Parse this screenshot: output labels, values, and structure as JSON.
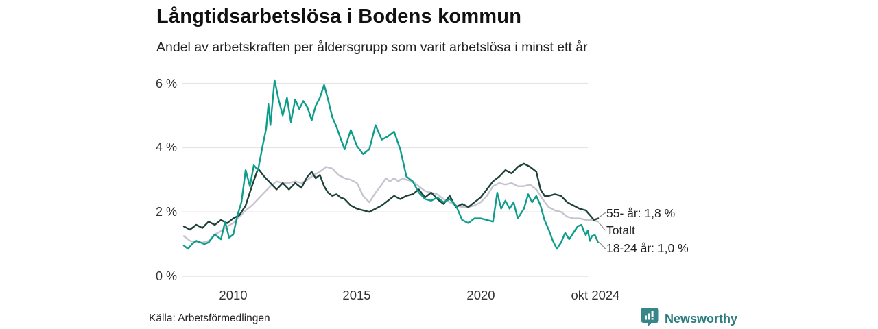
{
  "title": "Långtidsarbetslösa i Bodens kommun",
  "subtitle": "Andel av arbetskraften per åldersgrupp som varit arbetslösa i minst ett år",
  "source": "Källa: Arbetsförmedlingen",
  "branding": {
    "name": "Newsworthy",
    "icon": "newsworthy-bar-chart-pin-icon",
    "text_color": "#2b7b7f",
    "icon_color": "#37868a"
  },
  "chart_data": {
    "type": "line",
    "title": "Långtidsarbetslösa i Bodens kommun",
    "subtitle": "Andel av arbetskraften per åldersgrupp som varit arbetslösa i minst ett år",
    "grid": true,
    "gridline_color": "#e4e4e6",
    "legend_position": "right-end-labels",
    "x_axis": {
      "tick_labels": [
        "2010",
        "2015",
        "2020",
        "okt 2024"
      ],
      "tick_positions": [
        2010,
        2015,
        2020,
        2024.75
      ],
      "range": [
        2008,
        2024.75
      ]
    },
    "y_axis": {
      "unit": "%",
      "tick_labels": [
        "0 %",
        "2 %",
        "4 %",
        "6 %"
      ],
      "tick_values": [
        0,
        2,
        4,
        6
      ],
      "range": [
        0,
        6.3
      ]
    },
    "series": [
      {
        "id": "totalt",
        "name": "Totalt",
        "end_label": "Totalt",
        "color": "#c7c4cf",
        "points": [
          [
            2008,
            1.25
          ],
          [
            2008.25,
            1.1
          ],
          [
            2008.5,
            1.05
          ],
          [
            2008.75,
            1.05
          ],
          [
            2009,
            1.1
          ],
          [
            2009.25,
            1.3
          ],
          [
            2009.5,
            1.4
          ],
          [
            2009.75,
            1.55
          ],
          [
            2010,
            1.65
          ],
          [
            2010.25,
            1.85
          ],
          [
            2010.5,
            2.05
          ],
          [
            2010.75,
            2.2
          ],
          [
            2011,
            2.4
          ],
          [
            2011.25,
            2.6
          ],
          [
            2011.5,
            2.8
          ],
          [
            2011.75,
            2.95
          ],
          [
            2012,
            2.9
          ],
          [
            2012.25,
            2.9
          ],
          [
            2012.5,
            2.95
          ],
          [
            2012.75,
            2.9
          ],
          [
            2013,
            3.0
          ],
          [
            2013.25,
            3.15
          ],
          [
            2013.5,
            3.25
          ],
          [
            2013.75,
            3.4
          ],
          [
            2014,
            3.35
          ],
          [
            2014.25,
            3.15
          ],
          [
            2014.5,
            3.05
          ],
          [
            2014.75,
            3.0
          ],
          [
            2015,
            2.9
          ],
          [
            2015.25,
            2.5
          ],
          [
            2015.5,
            2.3
          ],
          [
            2015.75,
            2.6
          ],
          [
            2016,
            2.85
          ],
          [
            2016.17,
            3.05
          ],
          [
            2016.33,
            2.95
          ],
          [
            2016.5,
            3.05
          ],
          [
            2016.67,
            2.95
          ],
          [
            2016.83,
            3.05
          ],
          [
            2017,
            3.0
          ],
          [
            2017.25,
            2.95
          ],
          [
            2017.5,
            2.8
          ],
          [
            2017.75,
            2.65
          ],
          [
            2018,
            2.6
          ],
          [
            2018.25,
            2.55
          ],
          [
            2018.5,
            2.4
          ],
          [
            2018.75,
            2.3
          ],
          [
            2019,
            2.2
          ],
          [
            2019.25,
            2.15
          ],
          [
            2019.5,
            2.15
          ],
          [
            2019.75,
            2.2
          ],
          [
            2020,
            2.3
          ],
          [
            2020.25,
            2.5
          ],
          [
            2020.5,
            2.8
          ],
          [
            2020.75,
            2.9
          ],
          [
            2021,
            2.85
          ],
          [
            2021.25,
            2.9
          ],
          [
            2021.5,
            2.8
          ],
          [
            2021.75,
            2.8
          ],
          [
            2022,
            2.85
          ],
          [
            2022.25,
            2.7
          ],
          [
            2022.5,
            2.4
          ],
          [
            2022.75,
            2.15
          ],
          [
            2023,
            2.05
          ],
          [
            2023.25,
            2.0
          ],
          [
            2023.5,
            1.85
          ],
          [
            2023.75,
            1.8
          ],
          [
            2024,
            1.8
          ],
          [
            2024.25,
            1.75
          ],
          [
            2024.5,
            1.75
          ],
          [
            2024.75,
            1.7
          ]
        ]
      },
      {
        "id": "55-ar",
        "name": "55- år",
        "end_label": "55- år: 1,8 %",
        "end_value": "1,8 %",
        "color": "#1e423a",
        "points": [
          [
            2008,
            1.55
          ],
          [
            2008.25,
            1.45
          ],
          [
            2008.5,
            1.6
          ],
          [
            2008.75,
            1.5
          ],
          [
            2009,
            1.7
          ],
          [
            2009.25,
            1.6
          ],
          [
            2009.5,
            1.75
          ],
          [
            2009.75,
            1.65
          ],
          [
            2010,
            1.8
          ],
          [
            2010.25,
            1.9
          ],
          [
            2010.5,
            2.2
          ],
          [
            2010.75,
            2.8
          ],
          [
            2011,
            3.35
          ],
          [
            2011.25,
            3.1
          ],
          [
            2011.5,
            2.9
          ],
          [
            2011.75,
            2.7
          ],
          [
            2012,
            2.9
          ],
          [
            2012.25,
            2.7
          ],
          [
            2012.5,
            2.9
          ],
          [
            2012.75,
            2.75
          ],
          [
            2013,
            3.1
          ],
          [
            2013.17,
            3.25
          ],
          [
            2013.33,
            3.05
          ],
          [
            2013.5,
            3.15
          ],
          [
            2013.67,
            2.8
          ],
          [
            2013.83,
            2.6
          ],
          [
            2014,
            2.5
          ],
          [
            2014.17,
            2.55
          ],
          [
            2014.33,
            2.45
          ],
          [
            2014.5,
            2.4
          ],
          [
            2014.75,
            2.2
          ],
          [
            2015,
            2.1
          ],
          [
            2015.25,
            2.05
          ],
          [
            2015.5,
            2.0
          ],
          [
            2015.75,
            2.1
          ],
          [
            2016,
            2.2
          ],
          [
            2016.25,
            2.35
          ],
          [
            2016.5,
            2.5
          ],
          [
            2016.75,
            2.4
          ],
          [
            2017,
            2.5
          ],
          [
            2017.25,
            2.55
          ],
          [
            2017.5,
            2.7
          ],
          [
            2017.75,
            2.45
          ],
          [
            2018,
            2.6
          ],
          [
            2018.25,
            2.4
          ],
          [
            2018.5,
            2.25
          ],
          [
            2018.75,
            2.5
          ],
          [
            2019,
            2.15
          ],
          [
            2019.25,
            2.25
          ],
          [
            2019.5,
            2.15
          ],
          [
            2019.75,
            2.3
          ],
          [
            2020,
            2.45
          ],
          [
            2020.25,
            2.7
          ],
          [
            2020.5,
            2.95
          ],
          [
            2020.75,
            3.1
          ],
          [
            2021,
            3.3
          ],
          [
            2021.25,
            3.2
          ],
          [
            2021.5,
            3.4
          ],
          [
            2021.75,
            3.5
          ],
          [
            2022,
            3.4
          ],
          [
            2022.25,
            3.25
          ],
          [
            2022.42,
            2.7
          ],
          [
            2022.58,
            2.5
          ],
          [
            2022.75,
            2.5
          ],
          [
            2023,
            2.55
          ],
          [
            2023.25,
            2.5
          ],
          [
            2023.5,
            2.3
          ],
          [
            2023.75,
            2.2
          ],
          [
            2024,
            2.1
          ],
          [
            2024.25,
            2.05
          ],
          [
            2024.42,
            1.9
          ],
          [
            2024.58,
            1.75
          ],
          [
            2024.75,
            1.8
          ]
        ]
      },
      {
        "id": "18-24-ar",
        "name": "18-24 år",
        "end_label": "18-24 år: 1,0 %",
        "end_value": "1,0 %",
        "color": "#0e9c8b",
        "points": [
          [
            2008,
            0.95
          ],
          [
            2008.17,
            0.85
          ],
          [
            2008.33,
            1.0
          ],
          [
            2008.5,
            1.1
          ],
          [
            2008.67,
            1.05
          ],
          [
            2008.83,
            1.0
          ],
          [
            2009,
            1.05
          ],
          [
            2009.25,
            1.3
          ],
          [
            2009.5,
            1.15
          ],
          [
            2009.67,
            1.7
          ],
          [
            2009.83,
            1.2
          ],
          [
            2010,
            1.3
          ],
          [
            2010.17,
            1.9
          ],
          [
            2010.33,
            2.3
          ],
          [
            2010.5,
            3.3
          ],
          [
            2010.67,
            2.8
          ],
          [
            2010.83,
            3.45
          ],
          [
            2011,
            3.3
          ],
          [
            2011.17,
            4.0
          ],
          [
            2011.33,
            4.6
          ],
          [
            2011.42,
            5.35
          ],
          [
            2011.5,
            4.7
          ],
          [
            2011.67,
            6.1
          ],
          [
            2011.83,
            5.5
          ],
          [
            2012,
            5.0
          ],
          [
            2012.17,
            5.55
          ],
          [
            2012.33,
            4.8
          ],
          [
            2012.5,
            5.5
          ],
          [
            2012.67,
            5.2
          ],
          [
            2012.83,
            5.45
          ],
          [
            2013,
            5.25
          ],
          [
            2013.17,
            4.85
          ],
          [
            2013.33,
            5.3
          ],
          [
            2013.5,
            5.55
          ],
          [
            2013.67,
            5.95
          ],
          [
            2013.83,
            5.5
          ],
          [
            2014,
            4.95
          ],
          [
            2014.17,
            4.65
          ],
          [
            2014.33,
            4.3
          ],
          [
            2014.5,
            3.95
          ],
          [
            2014.75,
            4.55
          ],
          [
            2015,
            4.05
          ],
          [
            2015.25,
            3.8
          ],
          [
            2015.5,
            3.95
          ],
          [
            2015.75,
            4.7
          ],
          [
            2016,
            4.25
          ],
          [
            2016.25,
            4.35
          ],
          [
            2016.5,
            4.5
          ],
          [
            2016.75,
            3.95
          ],
          [
            2017,
            3.1
          ],
          [
            2017.25,
            2.95
          ],
          [
            2017.5,
            2.6
          ],
          [
            2017.75,
            2.4
          ],
          [
            2018,
            2.35
          ],
          [
            2018.25,
            2.45
          ],
          [
            2018.5,
            2.3
          ],
          [
            2018.75,
            2.4
          ],
          [
            2019,
            2.2
          ],
          [
            2019.25,
            1.75
          ],
          [
            2019.5,
            1.65
          ],
          [
            2019.75,
            1.8
          ],
          [
            2020,
            1.8
          ],
          [
            2020.25,
            1.75
          ],
          [
            2020.5,
            1.7
          ],
          [
            2020.67,
            2.6
          ],
          [
            2020.83,
            2.1
          ],
          [
            2021,
            2.35
          ],
          [
            2021.17,
            2.1
          ],
          [
            2021.33,
            2.3
          ],
          [
            2021.5,
            1.8
          ],
          [
            2021.75,
            2.1
          ],
          [
            2021.92,
            2.55
          ],
          [
            2022.08,
            2.3
          ],
          [
            2022.25,
            2.5
          ],
          [
            2022.42,
            2.2
          ],
          [
            2022.58,
            1.75
          ],
          [
            2022.75,
            1.45
          ],
          [
            2022.92,
            1.1
          ],
          [
            2023.08,
            0.85
          ],
          [
            2023.25,
            1.05
          ],
          [
            2023.42,
            1.35
          ],
          [
            2023.58,
            1.15
          ],
          [
            2023.75,
            1.35
          ],
          [
            2023.92,
            1.55
          ],
          [
            2024.08,
            1.6
          ],
          [
            2024.17,
            1.4
          ],
          [
            2024.25,
            1.28
          ],
          [
            2024.33,
            1.42
          ],
          [
            2024.42,
            1.1
          ],
          [
            2024.5,
            1.25
          ],
          [
            2024.62,
            1.28
          ],
          [
            2024.75,
            1.05
          ]
        ]
      }
    ]
  }
}
